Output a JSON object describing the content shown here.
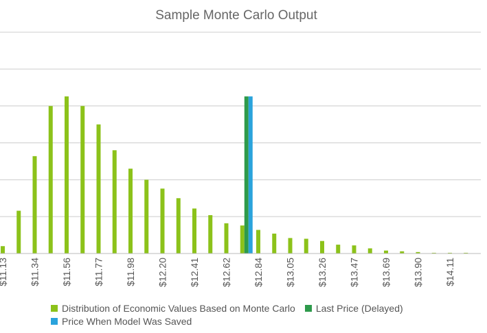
{
  "chart_data": {
    "type": "bar",
    "title": "Sample Monte Carlo Output",
    "xlabel": "",
    "ylabel": "",
    "ylim": [
      0,
      300
    ],
    "grid": true,
    "y_tick_labels_shown": false,
    "legend_position": "bottom",
    "x_tick_labels": [
      "$11.13",
      "$11.34",
      "$11.56",
      "$11.77",
      "$11.98",
      "$12.20",
      "$12.41",
      "$12.62",
      "$12.84",
      "$13.05",
      "$13.26",
      "$13.47",
      "$13.69",
      "$13.90",
      "$14.11"
    ],
    "series": [
      {
        "name": "Distribution of Economic Values Based on Monte Carlo",
        "color": "#8cc21a",
        "categories": [
          "$11.13",
          "$11.24",
          "$11.34",
          "$11.45",
          "$11.56",
          "$11.67",
          "$11.77",
          "$11.88",
          "$11.98",
          "$12.09",
          "$12.20",
          "$12.31",
          "$12.41",
          "$12.52",
          "$12.62",
          "$12.73",
          "$12.84",
          "$12.95",
          "$13.05",
          "$13.16",
          "$13.26",
          "$13.37",
          "$13.47",
          "$13.58",
          "$13.69",
          "$13.80",
          "$13.90",
          "$14.01",
          "$14.11",
          "$14.22"
        ],
        "values": [
          10,
          58,
          132,
          200,
          213,
          200,
          175,
          140,
          115,
          100,
          88,
          75,
          61,
          52,
          41,
          38,
          32,
          27,
          21,
          20,
          17,
          12,
          11,
          7,
          4,
          3,
          2,
          1,
          1,
          1
        ]
      },
      {
        "name": "Last Price (Delayed)",
        "color": "#2e9a4b",
        "x": "$12.73",
        "value": 213
      },
      {
        "name": "Price When Model Was Saved",
        "color": "#2aa3dc",
        "x": "$12.73",
        "value": 213
      }
    ]
  }
}
